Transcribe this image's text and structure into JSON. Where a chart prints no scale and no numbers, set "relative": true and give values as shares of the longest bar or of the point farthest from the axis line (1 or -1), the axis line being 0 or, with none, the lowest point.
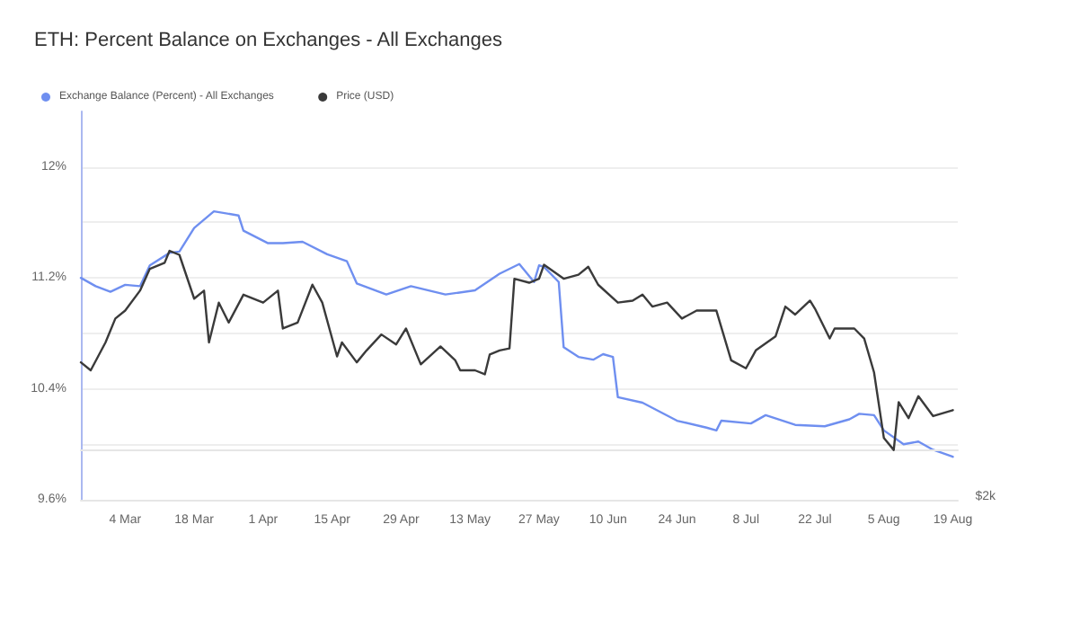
{
  "chart_data": [
    {
      "type": "line",
      "title": "ETH: Percent Balance on Exchanges - All Exchanges",
      "xlim": [
        "--02-24",
        "--08-20"
      ],
      "xticks": [
        {
          "value": "--03-04",
          "label": "4 Mar"
        },
        {
          "value": "--03-18",
          "label": "18 Mar"
        },
        {
          "value": "--04-01",
          "label": "1 Apr"
        },
        {
          "value": "--04-15",
          "label": "15 Apr"
        },
        {
          "value": "--04-29",
          "label": "29 Apr"
        },
        {
          "value": "--05-13",
          "label": "13 May"
        },
        {
          "value": "--05-27",
          "label": "27 May"
        },
        {
          "value": "--06-10",
          "label": "10 Jun"
        },
        {
          "value": "--06-24",
          "label": "24 Jun"
        },
        {
          "value": "--07-08",
          "label": "8 Jul"
        },
        {
          "value": "--07-22",
          "label": "22 Jul"
        },
        {
          "value": "--08-05",
          "label": "5 Aug"
        },
        {
          "value": "--08-19",
          "label": "19 Aug"
        }
      ],
      "ylim": [
        9.6,
        12.4
      ],
      "yticks": [
        {
          "value": 9.6,
          "label": "9.6%"
        },
        {
          "value": 10.0,
          "label": null
        },
        {
          "value": 10.4,
          "label": "10.4%"
        },
        {
          "value": 10.8,
          "label": null
        },
        {
          "value": 11.2,
          "label": "11.2%"
        },
        {
          "value": 11.6,
          "label": null
        },
        {
          "value": 12.0,
          "label": "12%"
        }
      ],
      "grid": "y",
      "legend": "top left",
      "marker": "none",
      "line_style": "solid",
      "series": [
        {
          "name": "Exchange Balance (Percent) - All Exchanges",
          "color": "#6f8ff0",
          "x": [
            "--02-24",
            "--02-27",
            "--03-01",
            "--03-04",
            "--03-07",
            "--03-09",
            "--03-13",
            "--03-15",
            "--03-18",
            "--03-22",
            "--03-27",
            "--03-28",
            "--04-02",
            "--04-05",
            "--04-09",
            "--04-14",
            "--04-18",
            "--04-20",
            "--04-26",
            "--05-01",
            "--05-08",
            "--05-14",
            "--05-19",
            "--05-23",
            "--05-26",
            "--05-27",
            "--05-28",
            "--05-31",
            "--06-01",
            "--06-04",
            "--06-07",
            "--06-09",
            "--06-11",
            "--06-12",
            "--06-17",
            "--06-24",
            "--06-30",
            "--07-02",
            "--07-03",
            "--07-09",
            "--07-12",
            "--07-18",
            "--07-24",
            "--07-29",
            "--07-31",
            "--08-03",
            "--08-05",
            "--08-09",
            "--08-12",
            "--08-15",
            "--08-19"
          ],
          "values": [
            11.2,
            11.14,
            11.1,
            11.15,
            11.14,
            11.29,
            11.38,
            11.39,
            11.56,
            11.68,
            11.65,
            11.54,
            11.45,
            11.45,
            11.46,
            11.37,
            11.32,
            11.16,
            11.08,
            11.14,
            11.08,
            11.11,
            11.23,
            11.3,
            11.17,
            11.29,
            11.28,
            11.17,
            10.7,
            10.63,
            10.61,
            10.65,
            10.63,
            10.34,
            10.3,
            10.17,
            10.12,
            10.1,
            10.17,
            10.15,
            10.21,
            10.14,
            10.13,
            10.18,
            10.22,
            10.21,
            10.1,
            10.0,
            10.02,
            9.96,
            9.91
          ]
        }
      ]
    },
    {
      "type": "line",
      "relative": true,
      "xlim": [
        "--02-24",
        "--08-20"
      ],
      "legend": "top left",
      "marker": "none",
      "line_style": "solid",
      "annotations": [
        "$2k"
      ],
      "series": [
        {
          "name": "Price (USD)",
          "color": "#3a3a3a",
          "x": [
            "--02-24",
            "--02-26",
            "--02-29",
            "--03-02",
            "--03-04",
            "--03-07",
            "--03-09",
            "--03-12",
            "--03-13",
            "--03-15",
            "--03-18",
            "--03-20",
            "--03-21",
            "--03-23",
            "--03-25",
            "--03-28",
            "--04-01",
            "--04-04",
            "--04-05",
            "--04-08",
            "--04-11",
            "--04-13",
            "--04-16",
            "--04-17",
            "--04-20",
            "--04-22",
            "--04-25",
            "--04-28",
            "--04-30",
            "--05-03",
            "--05-07",
            "--05-10",
            "--05-11",
            "--05-14",
            "--05-16",
            "--05-17",
            "--05-19",
            "--05-21",
            "--05-22",
            "--05-25",
            "--05-27",
            "--05-28",
            "--06-01",
            "--06-04",
            "--06-06",
            "--06-08",
            "--06-12",
            "--06-15",
            "--06-17",
            "--06-19",
            "--06-22",
            "--06-25",
            "--06-28",
            "--07-02",
            "--07-05",
            "--07-08",
            "--07-10",
            "--07-14",
            "--07-16",
            "--07-18",
            "--07-21",
            "--07-22",
            "--07-25",
            "--07-26",
            "--07-30",
            "--08-01",
            "--08-03",
            "--08-05",
            "--08-07",
            "--08-08",
            "--08-10",
            "--08-12",
            "--08-15",
            "--08-19"
          ],
          "values": [
            0.44,
            0.4,
            0.54,
            0.66,
            0.7,
            0.8,
            0.91,
            0.94,
            1,
            0.98,
            0.76,
            0.8,
            0.54,
            0.74,
            0.64,
            0.78,
            0.74,
            0.8,
            0.61,
            0.64,
            0.83,
            0.74,
            0.47,
            0.54,
            0.44,
            0.5,
            0.58,
            0.53,
            0.61,
            0.43,
            0.52,
            0.45,
            0.4,
            0.4,
            0.38,
            0.48,
            0.5,
            0.51,
            0.86,
            0.84,
            0.86,
            0.93,
            0.86,
            0.88,
            0.92,
            0.83,
            0.74,
            0.75,
            0.78,
            0.72,
            0.74,
            0.66,
            0.7,
            0.7,
            0.45,
            0.41,
            0.5,
            0.57,
            0.72,
            0.68,
            0.75,
            0.71,
            0.56,
            0.61,
            0.61,
            0.56,
            0.39,
            0.06,
            0,
            0.24,
            0.16,
            0.27,
            0.17,
            0.2
          ]
        }
      ]
    }
  ]
}
